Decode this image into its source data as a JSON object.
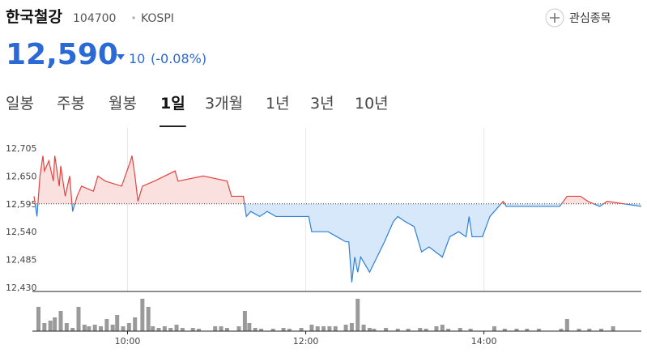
{
  "header": {
    "name": "한국철강",
    "code": "104700",
    "market": "KOSPI",
    "watch_button": "관심종목"
  },
  "quote": {
    "price": "12,590",
    "change": "10",
    "change_pct": "(-0.08%)"
  },
  "tabs": {
    "items": [
      "일봉",
      "주봉",
      "월봉",
      "1일",
      "3개월",
      "1년",
      "3년",
      "10년"
    ],
    "selected": 3
  },
  "chart_data": [
    {
      "type": "line",
      "baseline": 12595,
      "color_up": "#e0453f",
      "color_down": "#2f7fd6",
      "fill_up": "#fbe0e0",
      "fill_down": "#d6e8fa",
      "xlim": [
        537,
        946
      ],
      "ylim": [
        12422,
        12745
      ],
      "yticks": [
        {
          "value": 12705,
          "label": "12,705"
        },
        {
          "value": 12650,
          "label": "12,650"
        },
        {
          "value": 12595,
          "label": "12,595"
        },
        {
          "value": 12540,
          "label": "12,540"
        },
        {
          "value": 12485,
          "label": "12,485"
        },
        {
          "value": 12430,
          "label": "12,430"
        }
      ],
      "x": [
        537,
        539,
        541,
        543,
        544,
        547,
        550,
        551,
        554,
        555,
        558,
        561,
        563,
        566,
        569,
        577,
        580,
        585,
        596,
        602,
        603,
        605,
        607,
        610,
        618,
        632,
        634,
        651,
        667,
        670,
        675,
        678,
        680,
        683,
        689,
        694,
        700,
        711,
        722,
        724,
        735,
        741,
        747,
        749,
        751,
        753,
        755,
        757,
        763,
        768,
        773,
        779,
        782,
        787,
        793,
        798,
        803,
        812,
        817,
        823,
        828,
        830,
        832,
        839,
        844,
        850,
        853,
        855,
        874,
        891,
        896,
        905,
        910,
        918,
        923,
        946
      ],
      "values": [
        12610,
        12570,
        12650,
        12690,
        12660,
        12680,
        12640,
        12690,
        12630,
        12670,
        12610,
        12650,
        12580,
        12610,
        12630,
        12620,
        12650,
        12640,
        12630,
        12680,
        12690,
        12650,
        12600,
        12630,
        12640,
        12660,
        12640,
        12650,
        12640,
        12610,
        12610,
        12610,
        12570,
        12580,
        12570,
        12580,
        12570,
        12570,
        12570,
        12540,
        12540,
        12530,
        12520,
        12520,
        12440,
        12490,
        12460,
        12490,
        12460,
        12490,
        12520,
        12560,
        12570,
        12560,
        12550,
        12500,
        12510,
        12490,
        12530,
        12540,
        12530,
        12570,
        12530,
        12530,
        12570,
        12590,
        12600,
        12590,
        12590,
        12590,
        12610,
        12610,
        12600,
        12590,
        12600,
        12590
      ]
    },
    {
      "type": "bar",
      "color": "#9a9a9a",
      "xlim": [
        537,
        946
      ],
      "ylim": [
        0,
        44
      ],
      "xticks": [
        {
          "value": 600,
          "label": "10:00"
        },
        {
          "value": 720,
          "label": "12:00"
        },
        {
          "value": 840,
          "label": "14:00"
        }
      ],
      "x": [
        540,
        544,
        548,
        551,
        555,
        559,
        563,
        567,
        571,
        574,
        578,
        582,
        586,
        590,
        593,
        597,
        601,
        605,
        610,
        614,
        617,
        621,
        625,
        629,
        633,
        637,
        644,
        648,
        659,
        663,
        667,
        675,
        679,
        682,
        686,
        690,
        698,
        705,
        709,
        717,
        724,
        728,
        732,
        736,
        740,
        747,
        751,
        755,
        759,
        763,
        766,
        774,
        782,
        789,
        797,
        801,
        808,
        812,
        816,
        824,
        831,
        847,
        854,
        862,
        869,
        877,
        892,
        896,
        904,
        911,
        919,
        927
      ],
      "values": [
        30,
        10,
        13,
        17,
        25,
        10,
        4,
        30,
        8,
        6,
        8,
        6,
        15,
        8,
        20,
        6,
        10,
        17,
        40,
        30,
        6,
        4,
        6,
        4,
        8,
        4,
        4,
        3,
        6,
        6,
        4,
        6,
        25,
        10,
        4,
        3,
        3,
        4,
        3,
        4,
        8,
        6,
        6,
        6,
        6,
        8,
        10,
        40,
        8,
        4,
        3,
        4,
        3,
        3,
        4,
        3,
        6,
        8,
        3,
        4,
        3,
        6,
        3,
        3,
        3,
        3,
        3,
        15,
        3,
        3,
        3,
        6
      ]
    }
  ]
}
